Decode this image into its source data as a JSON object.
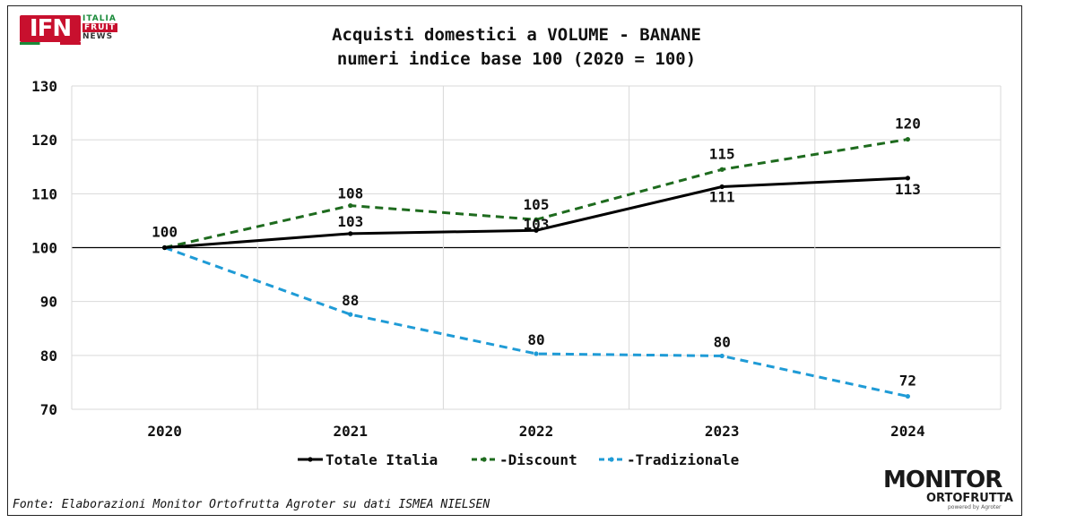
{
  "logos": {
    "ifn": {
      "main": "IFN",
      "line1": "ITALIA",
      "line2": "FRUIT",
      "line3": "NEWS"
    },
    "monitor": {
      "line1": "MONITOR",
      "line2": "ORTOFRUTTA",
      "line3": "powered by Agroter"
    }
  },
  "source_note": "Fonte: Elaborazioni Monitor Ortofrutta Agroter su dati ISMEA NIELSEN",
  "colors": {
    "totale": "#000000",
    "discount": "#1e6b1e",
    "tradizionale": "#1f9bd6",
    "grid": "#d9d9d9",
    "baseline": "#000000"
  },
  "chart_data": {
    "type": "line",
    "title": [
      "Acquisti domestici a VOLUME - BANANE",
      "numeri indice base 100 (2020 = 100)"
    ],
    "categories": [
      "2020",
      "2021",
      "2022",
      "2023",
      "2024"
    ],
    "ylim": [
      70,
      130
    ],
    "yticks": [
      70,
      80,
      90,
      100,
      110,
      120,
      130
    ],
    "grid": true,
    "legend_position": "bottom",
    "series": [
      {
        "name": "Totale Italia",
        "values": [
          100,
          102.6,
          103.2,
          111.3,
          112.9
        ],
        "labels": [
          "100",
          "103",
          "103",
          "111",
          "113"
        ],
        "style": "solid"
      },
      {
        "name": "Discount",
        "values": [
          100,
          107.8,
          105.2,
          114.5,
          120.1
        ],
        "labels": [
          "",
          "108",
          "105",
          "115",
          "120"
        ],
        "style": "dashed"
      },
      {
        "name": "Tradizionale",
        "values": [
          100,
          87.6,
          80.3,
          79.9,
          72.4
        ],
        "labels": [
          "",
          "88",
          "80",
          "80",
          "72"
        ],
        "style": "dashed"
      }
    ]
  }
}
